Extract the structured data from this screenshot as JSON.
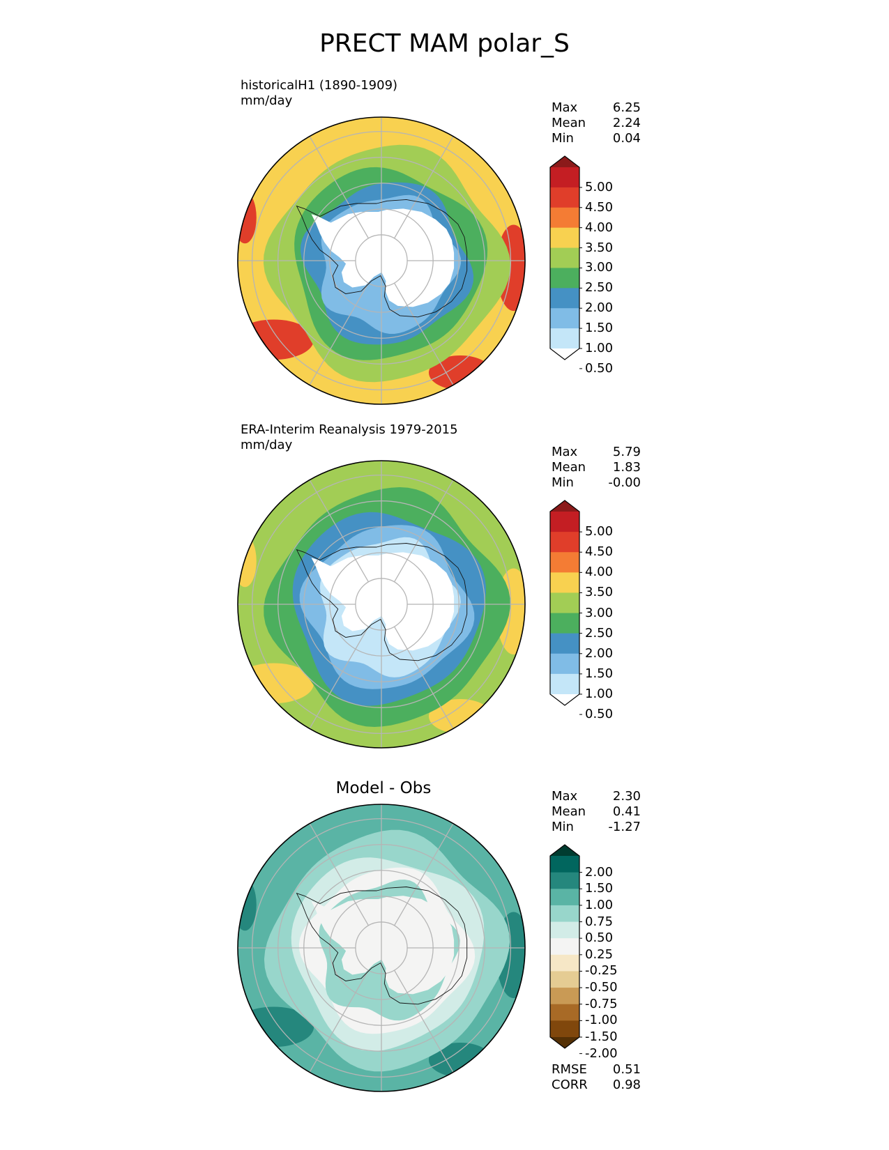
{
  "figure": {
    "title": "PRECT MAM polar_S"
  },
  "chart_data": [
    {
      "type": "heatmap",
      "projection": "south-polar-stereographic",
      "title": "historicalH1 (1890-1909)",
      "units": "mm/day",
      "stats": [
        {
          "label": "Max",
          "value": "6.25"
        },
        {
          "label": "Mean",
          "value": "2.24"
        },
        {
          "label": "Min",
          "value": "0.04"
        }
      ],
      "colorbar": {
        "ticks": [
          "5.00",
          "4.50",
          "4.00",
          "3.50",
          "3.00",
          "2.50",
          "2.00",
          "1.50",
          "1.00",
          "0.50"
        ],
        "colors": [
          "#8b1a1a",
          "#c41e23",
          "#e03e2a",
          "#f47c34",
          "#f8d150",
          "#a2cd55",
          "#4caf5e",
          "#4591c4",
          "#80bce6",
          "#c4e6f8",
          "#ffffff"
        ],
        "extend": "both"
      },
      "zones": [
        {
          "name": "antarctic-interior",
          "value": 0.3
        },
        {
          "name": "coast",
          "value": 1.25
        },
        {
          "name": "inner-ocean-ring",
          "value": 1.75
        },
        {
          "name": "mid-ocean-ring",
          "value": 2.25
        },
        {
          "name": "outer-ocean-ring",
          "value": 2.75
        },
        {
          "name": "subtropical-band",
          "value": 3.25
        },
        {
          "name": "storm-track-maxima",
          "value": 4.25
        }
      ]
    },
    {
      "type": "heatmap",
      "projection": "south-polar-stereographic",
      "title": "ERA-Interim Reanalysis 1979-2015",
      "units": "mm/day",
      "stats": [
        {
          "label": "Max",
          "value": "5.79"
        },
        {
          "label": "Mean",
          "value": "1.83"
        },
        {
          "label": "Min",
          "value": "-0.00"
        }
      ],
      "colorbar": {
        "ticks": [
          "5.00",
          "4.50",
          "4.00",
          "3.50",
          "3.00",
          "2.50",
          "2.00",
          "1.50",
          "1.00",
          "0.50"
        ],
        "colors": [
          "#8b1a1a",
          "#c41e23",
          "#e03e2a",
          "#f47c34",
          "#f8d150",
          "#a2cd55",
          "#4caf5e",
          "#4591c4",
          "#80bce6",
          "#c4e6f8",
          "#ffffff"
        ],
        "extend": "both"
      },
      "zones": [
        {
          "name": "antarctic-interior",
          "value": 0.3
        },
        {
          "name": "coast",
          "value": 0.75
        },
        {
          "name": "inner-ocean-ring",
          "value": 1.25
        },
        {
          "name": "mid-ocean-ring",
          "value": 1.75
        },
        {
          "name": "outer-ocean-ring",
          "value": 2.25
        },
        {
          "name": "subtropical-band",
          "value": 2.75
        },
        {
          "name": "storm-track-maxima",
          "value": 3.25
        }
      ]
    },
    {
      "type": "heatmap",
      "projection": "south-polar-stereographic",
      "title": "Model - Obs",
      "units": "",
      "stats": [
        {
          "label": "Max",
          "value": "2.30"
        },
        {
          "label": "Mean",
          "value": "0.41"
        },
        {
          "label": "Min",
          "value": "-1.27"
        }
      ],
      "colorbar": {
        "ticks": [
          "2.00",
          "1.50",
          "1.00",
          "0.75",
          "0.50",
          "0.25",
          "-0.25",
          "-0.50",
          "-0.75",
          "-1.00",
          "-1.50",
          "-2.00"
        ],
        "colors": [
          "#003c30",
          "#01665e",
          "#25877d",
          "#5ab4a5",
          "#98d6cb",
          "#d2ece7",
          "#f4f4f3",
          "#f6e7c6",
          "#e5cc93",
          "#c99a55",
          "#a86a26",
          "#80470c",
          "#543005"
        ],
        "extend": "both"
      },
      "zones": [
        {
          "name": "antarctic-interior",
          "value": 0.1
        },
        {
          "name": "coast",
          "value": 0.6
        },
        {
          "name": "inner-ocean-ring",
          "value": 0.1
        },
        {
          "name": "mid-ocean-ring",
          "value": 0.4
        },
        {
          "name": "outer-ocean-ring",
          "value": 0.6
        },
        {
          "name": "subtropical-band",
          "value": 0.9
        },
        {
          "name": "storm-track-maxima",
          "value": 1.25
        }
      ],
      "footer_stats": [
        {
          "label": "RMSE",
          "value": "0.51"
        },
        {
          "label": "CORR",
          "value": "0.98"
        }
      ]
    }
  ]
}
